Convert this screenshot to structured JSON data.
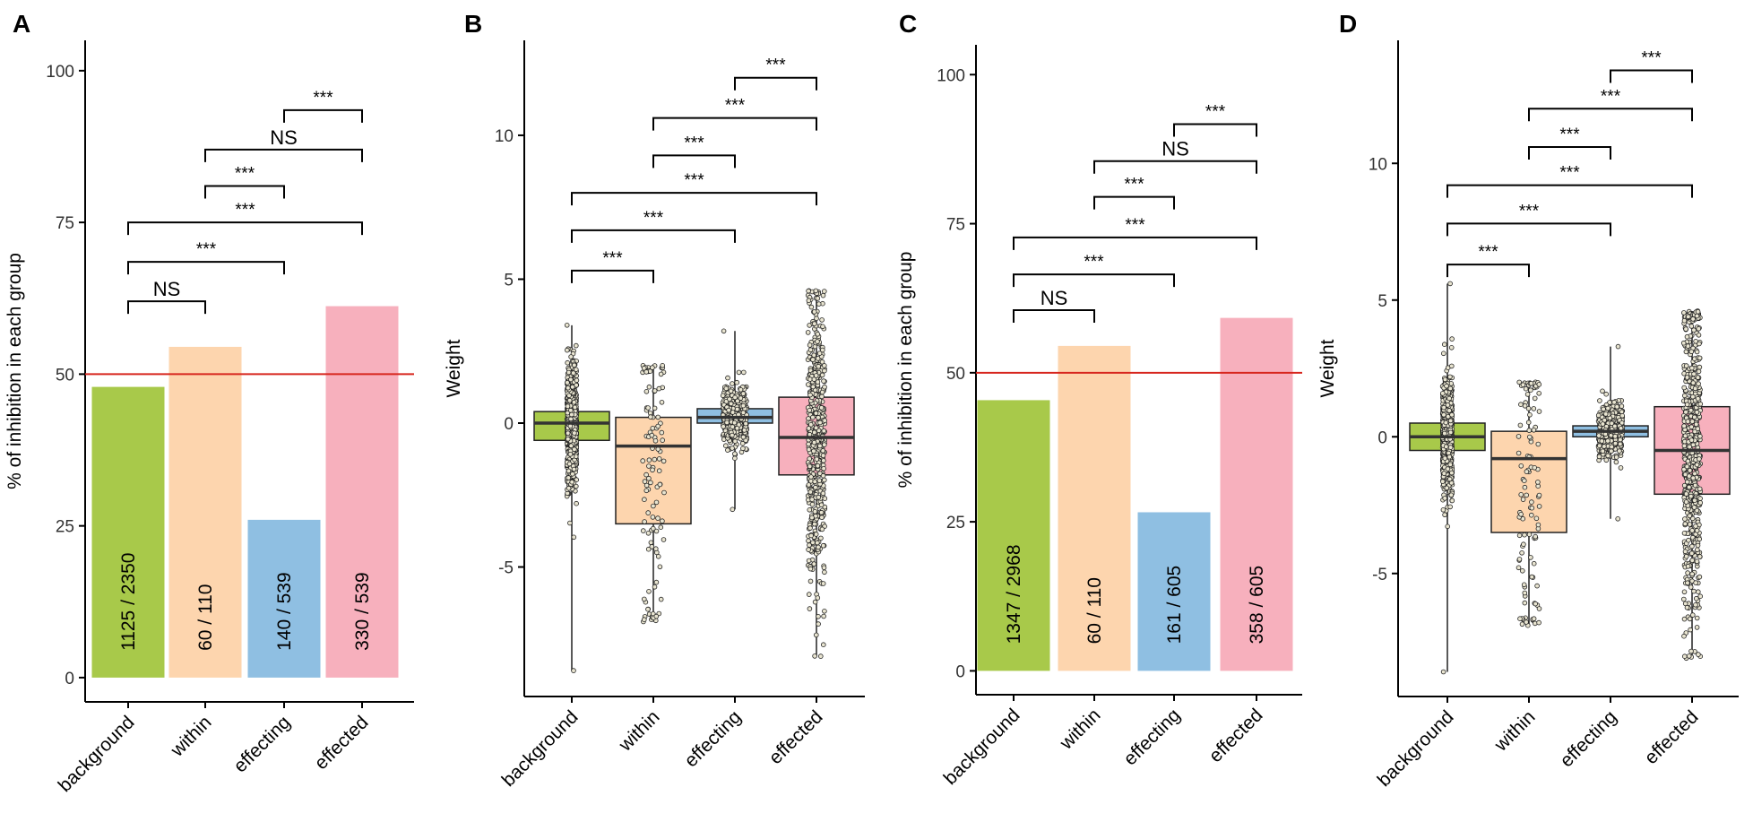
{
  "figure": {
    "colors": {
      "background": "#a8c94a",
      "within": "#fdd5ae",
      "effecting": "#8fbfe2",
      "effected": "#f7b0bd",
      "reference_line": "#d7261e",
      "axis": "#000000",
      "points": "#e8e4d0"
    }
  },
  "chart_data": [
    {
      "panel": "A",
      "type": "bar",
      "title": "",
      "xlabel": "",
      "ylabel": "% of  inhibition in each group",
      "ylim": [
        -4,
        105
      ],
      "yticks": [
        0,
        25,
        50,
        75,
        100
      ],
      "reference_line": 50,
      "categories": [
        "background",
        "within",
        "effecting",
        "effected"
      ],
      "values": [
        47.9,
        54.5,
        26.0,
        61.2
      ],
      "bar_labels": [
        "1125 / 2350",
        "60 / 110",
        "140 / 539",
        "330 / 539"
      ],
      "comparisons": [
        {
          "pair": [
            "background",
            "within"
          ],
          "label": "NS",
          "level": 62
        },
        {
          "pair": [
            "background",
            "effecting"
          ],
          "label": "***",
          "level": 68.5
        },
        {
          "pair": [
            "background",
            "effected"
          ],
          "label": "***",
          "level": 75
        },
        {
          "pair": [
            "within",
            "effecting"
          ],
          "label": "***",
          "level": 81
        },
        {
          "pair": [
            "within",
            "effected"
          ],
          "label": "NS",
          "level": 87
        },
        {
          "pair": [
            "effecting",
            "effected"
          ],
          "label": "***",
          "level": 93.5
        }
      ]
    },
    {
      "panel": "B",
      "type": "box",
      "title": "",
      "xlabel": "",
      "ylabel": "Weight",
      "ylim": [
        -9.5,
        13.3
      ],
      "yticks": [
        -5,
        0,
        5,
        10
      ],
      "categories": [
        "background",
        "within",
        "effecting",
        "effected"
      ],
      "boxes": [
        {
          "q1": -0.6,
          "median": 0.0,
          "q3": 0.4,
          "whisker_low": -8.6,
          "whisker_high": 3.4,
          "n": 2350,
          "spread": 0.04
        },
        {
          "q1": -3.5,
          "median": -0.8,
          "q3": 0.2,
          "whisker_low": -6.9,
          "whisker_high": 2.0,
          "n": 110,
          "spread": 0.09
        },
        {
          "q1": 0.0,
          "median": 0.2,
          "q3": 0.5,
          "whisker_low": -3.0,
          "whisker_high": 3.2,
          "n": 539,
          "spread": 0.1
        },
        {
          "q1": -1.8,
          "median": -0.5,
          "q3": 0.9,
          "whisker_low": -8.1,
          "whisker_high": 4.6,
          "n": 539,
          "spread": 0.07
        }
      ],
      "comparisons": [
        {
          "pair": [
            "background",
            "within"
          ],
          "label": "***",
          "level": 5.3
        },
        {
          "pair": [
            "background",
            "effecting"
          ],
          "label": "***",
          "level": 6.7
        },
        {
          "pair": [
            "background",
            "effected"
          ],
          "label": "***",
          "level": 8.0
        },
        {
          "pair": [
            "within",
            "effecting"
          ],
          "label": "***",
          "level": 9.3
        },
        {
          "pair": [
            "within",
            "effected"
          ],
          "label": "***",
          "level": 10.6
        },
        {
          "pair": [
            "effecting",
            "effected"
          ],
          "label": "***",
          "level": 12.0
        }
      ]
    },
    {
      "panel": "C",
      "type": "bar",
      "title": "",
      "xlabel": "",
      "ylabel": "% of  inhibition in each group",
      "ylim": [
        -4,
        105
      ],
      "yticks": [
        0,
        25,
        50,
        75,
        100
      ],
      "reference_line": 50,
      "categories": [
        "background",
        "within",
        "effecting",
        "effected"
      ],
      "values": [
        45.4,
        54.5,
        26.6,
        59.2
      ],
      "bar_labels": [
        "1347 / 2968",
        "60 / 110",
        "161 / 605",
        "358 / 605"
      ],
      "comparisons": [
        {
          "pair": [
            "background",
            "within"
          ],
          "label": "NS",
          "level": 60.5
        },
        {
          "pair": [
            "background",
            "effecting"
          ],
          "label": "***",
          "level": 66.5
        },
        {
          "pair": [
            "background",
            "effected"
          ],
          "label": "***",
          "level": 72.7
        },
        {
          "pair": [
            "within",
            "effecting"
          ],
          "label": "***",
          "level": 79.5
        },
        {
          "pair": [
            "within",
            "effected"
          ],
          "label": "NS",
          "level": 85.5
        },
        {
          "pair": [
            "effecting",
            "effected"
          ],
          "label": "***",
          "level": 91.7
        }
      ]
    },
    {
      "panel": "D",
      "type": "box",
      "title": "",
      "xlabel": "",
      "ylabel": "Weight",
      "ylim": [
        -9.5,
        14.5
      ],
      "yticks": [
        -5,
        0,
        5,
        10
      ],
      "categories": [
        "background",
        "within",
        "effecting",
        "effected"
      ],
      "boxes": [
        {
          "q1": -0.5,
          "median": 0.0,
          "q3": 0.5,
          "whisker_low": -8.6,
          "whisker_high": 5.6,
          "n": 2968,
          "spread": 0.04
        },
        {
          "q1": -3.5,
          "median": -0.8,
          "q3": 0.2,
          "whisker_low": -6.9,
          "whisker_high": 2.0,
          "n": 110,
          "spread": 0.09
        },
        {
          "q1": 0.0,
          "median": 0.2,
          "q3": 0.4,
          "whisker_low": -3.0,
          "whisker_high": 3.3,
          "n": 605,
          "spread": 0.1
        },
        {
          "q1": -2.1,
          "median": -0.5,
          "q3": 1.1,
          "whisker_low": -8.1,
          "whisker_high": 4.6,
          "n": 605,
          "spread": 0.07
        }
      ],
      "comparisons": [
        {
          "pair": [
            "background",
            "within"
          ],
          "label": "***",
          "level": 6.3
        },
        {
          "pair": [
            "background",
            "effecting"
          ],
          "label": "***",
          "level": 7.8
        },
        {
          "pair": [
            "background",
            "effected"
          ],
          "label": "***",
          "level": 9.2
        },
        {
          "pair": [
            "within",
            "effecting"
          ],
          "label": "***",
          "level": 10.6
        },
        {
          "pair": [
            "within",
            "effected"
          ],
          "label": "***",
          "level": 12.0
        },
        {
          "pair": [
            "effecting",
            "effected"
          ],
          "label": "***",
          "level": 13.4
        }
      ]
    }
  ]
}
